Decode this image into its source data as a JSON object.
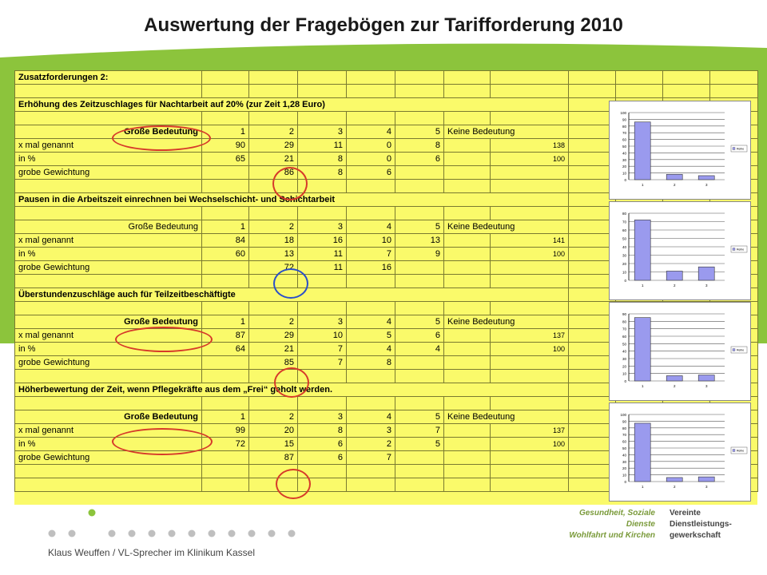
{
  "slide": {
    "title": "Auswertung der Fragebögen zur Tarifforderung 2010",
    "presenter": "Klaus Weuffen / VL-Sprecher im Klinikum Kassel",
    "brand_sub_1": "Gesundheit, Soziale Dienste",
    "brand_sub_2": "Wohlfahrt und Kirchen",
    "brand_name_1": "Vereinte",
    "brand_name_2": "Dienstleistungs-",
    "brand_name_3": "gewerkschaft"
  },
  "sheet": {
    "heading": "Zusatzforderungen 2:",
    "sections": [
      {
        "title": "Erhöhung des Zeitzuschlages für Nachtarbeit auf 20% (zur Zeit 1,28 Euro)",
        "scale_label": "Große Bedeutung",
        "scale": [
          "1",
          "2",
          "3",
          "4",
          "5"
        ],
        "none_label": "Keine Bedeutung",
        "row1_label": "x mal genannt",
        "row1": [
          "90",
          "29",
          "11",
          "0",
          "8"
        ],
        "row1_total": "138",
        "row2_label": "in %",
        "row2": [
          "65",
          "21",
          "8",
          "0",
          "6"
        ],
        "row2_total": "100",
        "row3_label": "grobe Gewichtung",
        "row3": [
          "86",
          "8",
          "6"
        ]
      },
      {
        "title": "Pausen in die Arbeitszeit einrechnen bei Wechselschicht- und Schichtarbeit",
        "scale_label": "Große Bedeutung",
        "scale": [
          "1",
          "2",
          "3",
          "4",
          "5"
        ],
        "none_label": "Keine Bedeutung",
        "row1_label": "x mal genannt",
        "row1": [
          "84",
          "18",
          "16",
          "10",
          "13"
        ],
        "row1_total": "141",
        "row2_label": "in %",
        "row2": [
          "60",
          "13",
          "11",
          "7",
          "9"
        ],
        "row2_total": "100",
        "row3_label": "grobe Gewichtung",
        "row3": [
          "72",
          "11",
          "16"
        ]
      },
      {
        "title": "Überstundenzuschläge auch für Teilzeitbeschäftigte",
        "scale_label": "Große Bedeutung",
        "scale": [
          "1",
          "2",
          "3",
          "4",
          "5"
        ],
        "none_label": "Keine Bedeutung",
        "row1_label": "x mal genannt",
        "row1": [
          "87",
          "29",
          "10",
          "5",
          "6"
        ],
        "row1_total": "137",
        "row2_label": "in %",
        "row2": [
          "64",
          "21",
          "7",
          "4",
          "4"
        ],
        "row2_total": "100",
        "row3_label": "grobe Gewichtung",
        "row3": [
          "85",
          "7",
          "8"
        ]
      },
      {
        "title": "Höherbewertung der Zeit, wenn Pflegekräfte aus dem „Frei“ geholt werden.",
        "scale_label": "Große Bedeutung",
        "scale": [
          "1",
          "2",
          "3",
          "4",
          "5"
        ],
        "none_label": "Keine Bedeutung",
        "row1_label": "x mal genannt",
        "row1": [
          "99",
          "20",
          "8",
          "3",
          "7"
        ],
        "row1_total": "137",
        "row2_label": "in %",
        "row2": [
          "72",
          "15",
          "6",
          "2",
          "5"
        ],
        "row2_total": "100",
        "row3_label": "grobe Gewichtung",
        "row3": [
          "87",
          "6",
          "7"
        ]
      }
    ]
  },
  "chart_data": [
    {
      "type": "bar",
      "categories": [
        "1",
        "2",
        "3"
      ],
      "values": [
        86,
        8,
        6
      ],
      "ylim": [
        0,
        100
      ],
      "yticks": [
        "100",
        "90",
        "80",
        "70",
        "60",
        "50",
        "40",
        "30",
        "20",
        "10",
        "0"
      ],
      "legend": "Reihe",
      "bar_color": "#9a9aee"
    },
    {
      "type": "bar",
      "categories": [
        "1",
        "2",
        "3"
      ],
      "values": [
        72,
        11,
        16
      ],
      "ylim": [
        0,
        80
      ],
      "yticks": [
        "80",
        "70",
        "60",
        "50",
        "40",
        "30",
        "20",
        "10",
        "0"
      ],
      "legend": "Reihe",
      "bar_color": "#9a9aee"
    },
    {
      "type": "bar",
      "categories": [
        "1",
        "2",
        "3"
      ],
      "values": [
        85,
        7,
        8
      ],
      "ylim": [
        0,
        90
      ],
      "yticks": [
        "90",
        "80",
        "70",
        "60",
        "50",
        "40",
        "30",
        "20",
        "10",
        "0"
      ],
      "legend": "Reihe",
      "bar_color": "#9a9aee"
    },
    {
      "type": "bar",
      "categories": [
        "1",
        "2",
        "3"
      ],
      "values": [
        87,
        6,
        7
      ],
      "ylim": [
        0,
        100
      ],
      "yticks": [
        "100",
        "90",
        "80",
        "70",
        "60",
        "50",
        "40",
        "30",
        "20",
        "10",
        "0"
      ],
      "legend": "Reihe",
      "bar_color": "#9a9aee"
    }
  ]
}
